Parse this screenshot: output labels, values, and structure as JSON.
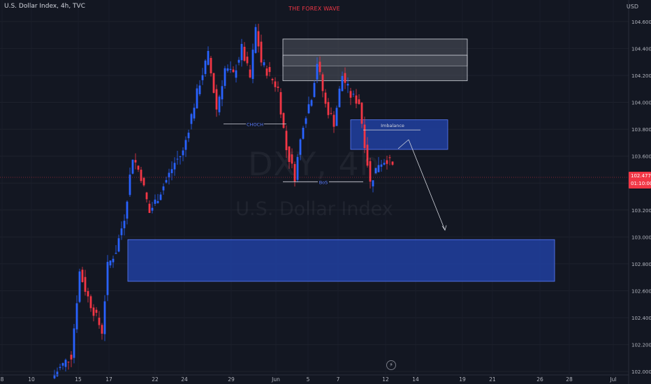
{
  "header": {
    "symbol_title": "U.S. Dollar Index, 4h, TVC",
    "author_title": "THE FOREX WAVE",
    "currency": "USD"
  },
  "watermark": {
    "symbol": "DXY, 4h",
    "name": "U.S. Dollar Index"
  },
  "last_price": {
    "value": "102.477",
    "countdown": "01:10:00"
  },
  "icons": {
    "bolt": "lightning-icon",
    "bolt_glyph": "⚡"
  },
  "colors": {
    "background": "#131722",
    "up": "#2962ff",
    "down": "#f23645",
    "zone_blue": "#1e3a8a",
    "zone_grey": "#363a45",
    "text": "#b2b5be"
  },
  "chart_data": {
    "type": "candlestick",
    "y_axis": {
      "ylim": [
        101.98,
        104.76
      ],
      "ticks": [
        "104.600",
        "104.400",
        "104.200",
        "104.000",
        "103.800",
        "103.600",
        "103.400",
        "103.200",
        "103.000",
        "102.800",
        "102.600",
        "102.400",
        "102.200",
        "102.000"
      ]
    },
    "x_axis": {
      "ticks": [
        "8",
        "10",
        "15",
        "17",
        "22",
        "24",
        "29",
        "Jun",
        "5",
        "7",
        "12",
        "14",
        "19",
        "21",
        "26",
        "28",
        "Jul"
      ]
    },
    "zones": [
      {
        "type": "supply",
        "label": "",
        "price_high": 104.47,
        "price_low": 104.27
      },
      {
        "type": "supply",
        "label": "",
        "price_high": 104.35,
        "price_low": 104.16
      },
      {
        "type": "imbalance",
        "label": "Imbalance",
        "price_high": 103.87,
        "price_low": 103.65
      },
      {
        "type": "demand",
        "label": "",
        "price_high": 102.98,
        "price_low": 102.67
      }
    ],
    "annotations": [
      {
        "label": "CHOCH",
        "price": 103.84
      },
      {
        "label": "BoS",
        "price": 103.41
      },
      {
        "label": "Imbalance",
        "price": 103.8
      }
    ],
    "current_price_line": 102.477,
    "projection_target": 103.05,
    "anchors": [
      {
        "i": 0,
        "p": 101.98
      },
      {
        "i": 3,
        "p": 102.05
      },
      {
        "i": 6,
        "p": 102.12
      },
      {
        "i": 9,
        "p": 102.74
      },
      {
        "i": 12,
        "p": 102.55
      },
      {
        "i": 15,
        "p": 102.4
      },
      {
        "i": 17,
        "p": 102.3
      },
      {
        "i": 19,
        "p": 102.78
      },
      {
        "i": 22,
        "p": 102.9
      },
      {
        "i": 25,
        "p": 103.15
      },
      {
        "i": 28,
        "p": 103.6
      },
      {
        "i": 31,
        "p": 103.45
      },
      {
        "i": 34,
        "p": 103.18
      },
      {
        "i": 37,
        "p": 103.3
      },
      {
        "i": 40,
        "p": 103.42
      },
      {
        "i": 43,
        "p": 103.55
      },
      {
        "i": 46,
        "p": 103.63
      },
      {
        "i": 49,
        "p": 103.9
      },
      {
        "i": 52,
        "p": 104.15
      },
      {
        "i": 55,
        "p": 104.35
      },
      {
        "i": 58,
        "p": 103.95
      },
      {
        "i": 61,
        "p": 104.25
      },
      {
        "i": 64,
        "p": 104.2
      },
      {
        "i": 67,
        "p": 104.4
      },
      {
        "i": 70,
        "p": 104.18
      },
      {
        "i": 72,
        "p": 104.55
      },
      {
        "i": 74,
        "p": 104.3
      },
      {
        "i": 77,
        "p": 104.2
      },
      {
        "i": 80,
        "p": 104.1
      },
      {
        "i": 83,
        "p": 103.65
      },
      {
        "i": 86,
        "p": 103.45
      },
      {
        "i": 89,
        "p": 103.85
      },
      {
        "i": 92,
        "p": 104.05
      },
      {
        "i": 94,
        "p": 104.3
      },
      {
        "i": 97,
        "p": 103.98
      },
      {
        "i": 100,
        "p": 103.85
      },
      {
        "i": 103,
        "p": 104.2
      },
      {
        "i": 106,
        "p": 104.05
      },
      {
        "i": 109,
        "p": 104.0
      },
      {
        "i": 111,
        "p": 103.7
      },
      {
        "i": 113,
        "p": 103.4
      },
      {
        "i": 116,
        "p": 103.55
      },
      {
        "i": 119,
        "p": 103.58
      },
      {
        "i": 121,
        "p": 103.52
      }
    ]
  }
}
